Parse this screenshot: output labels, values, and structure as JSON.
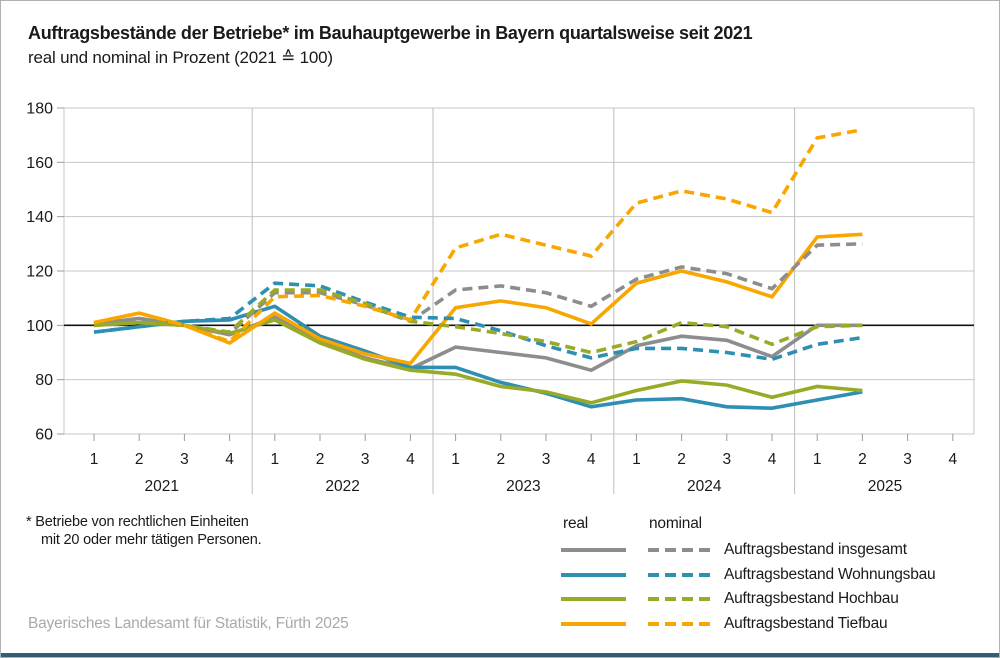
{
  "header": {
    "title": "Auftragsbestände der Betriebe* im Bauhauptgewerbe in Bayern quartalsweise seit 2021",
    "subtitle": "real und nominal in Prozent (2021 ≙ 100)"
  },
  "footnote": {
    "marker": "*",
    "line1": "Betriebe von rechtlichen Einheiten",
    "line2": "mit 20 oder mehr tätigen Personen."
  },
  "source": "Bayerisches Landesamt für Statistik, Fürth 2025",
  "colors": {
    "gray": "#8d8d8d",
    "blue": "#2e8fb3",
    "green": "#99ab26",
    "orange": "#f8a600",
    "baseline": "#111111",
    "grid": "#c7c7c7",
    "separator": "#bdbdbd"
  },
  "legend": {
    "col_real": "real",
    "col_nominal": "nominal",
    "rows": [
      {
        "label": "Auftragsbestand insgesamt",
        "color_key": "gray"
      },
      {
        "label": "Auftragsbestand Wohnungsbau",
        "color_key": "blue"
      },
      {
        "label": "Auftragsbestand Hochbau",
        "color_key": "green"
      },
      {
        "label": "Auftragsbestand Tiefbau",
        "color_key": "orange"
      }
    ]
  },
  "chart_data": {
    "type": "line",
    "title": "Auftragsbestände der Betriebe im Bauhauptgewerbe in Bayern quartalsweise seit 2021",
    "subtitle": "real und nominal in Prozent (2021 ≙ 100)",
    "ylim": [
      60,
      180
    ],
    "yticks": [
      60,
      80,
      100,
      120,
      140,
      160,
      180
    ],
    "baseline": 100,
    "grid": true,
    "legend_position": "bottom-right",
    "x_axis": {
      "years": [
        "2021",
        "2022",
        "2023",
        "2024",
        "2025"
      ],
      "quarter_labels": [
        "1",
        "2",
        "3",
        "4"
      ]
    },
    "categories": [
      "2021 Q1",
      "2021 Q2",
      "2021 Q3",
      "2021 Q4",
      "2022 Q1",
      "2022 Q2",
      "2022 Q3",
      "2022 Q4",
      "2023 Q1",
      "2023 Q2",
      "2023 Q3",
      "2023 Q4",
      "2024 Q1",
      "2024 Q2",
      "2024 Q3",
      "2024 Q4",
      "2025 Q1",
      "2025 Q2"
    ],
    "series": [
      {
        "name": "Auftragsbestand insgesamt real",
        "color_key": "gray",
        "dash": false,
        "values": [
          100.5,
          102.5,
          100,
          96.5,
          103,
          94,
          88,
          84,
          92,
          90,
          88,
          83.5,
          92.5,
          96,
          94.5,
          88.5,
          100,
          100
        ]
      },
      {
        "name": "Auftragsbestand Wohnungsbau real",
        "color_key": "blue",
        "dash": false,
        "values": [
          97.5,
          99.5,
          101.5,
          102,
          107,
          96,
          90.5,
          84.5,
          84.5,
          79,
          75,
          70,
          72.5,
          73,
          70,
          69.5,
          72.5,
          75.5
        ]
      },
      {
        "name": "Auftragsbestand Hochbau real",
        "color_key": "green",
        "dash": false,
        "values": [
          100,
          101,
          100,
          97,
          102,
          93.5,
          87.5,
          83.5,
          82,
          77.5,
          75.5,
          71.5,
          76,
          79.5,
          78,
          73.5,
          77.5,
          76
        ]
      },
      {
        "name": "Auftragsbestand Tiefbau real",
        "color_key": "orange",
        "dash": false,
        "values": [
          101,
          104.5,
          100,
          93.5,
          104.5,
          95,
          89.5,
          86,
          106.5,
          109,
          106.5,
          100.5,
          115.5,
          120,
          116,
          110.5,
          132.5,
          133.5
        ]
      },
      {
        "name": "Auftragsbestand insgesamt nominal",
        "color_key": "gray",
        "dash": true,
        "values": [
          100.5,
          102.5,
          100,
          97,
          112,
          112,
          107.5,
          101.5,
          113,
          114.5,
          112,
          107,
          117,
          121.5,
          119,
          113.5,
          129.5,
          130
        ]
      },
      {
        "name": "Auftragsbestand Wohnungsbau nominal",
        "color_key": "blue",
        "dash": true,
        "values": [
          97.5,
          99.5,
          101.5,
          102.5,
          115.5,
          114.5,
          108.5,
          103,
          102.5,
          98,
          92.5,
          88,
          91.5,
          91.5,
          90,
          87.5,
          93,
          95.5
        ]
      },
      {
        "name": "Auftragsbestand Hochbau nominal",
        "color_key": "green",
        "dash": true,
        "values": [
          100,
          101,
          100,
          97.5,
          113,
          113,
          108,
          101.5,
          99.5,
          97,
          94,
          90,
          94,
          101,
          99.5,
          93,
          99.5,
          100
        ]
      },
      {
        "name": "Auftragsbestand Tiefbau nominal",
        "color_key": "orange",
        "dash": true,
        "values": [
          101,
          104.5,
          100,
          94,
          110.5,
          111,
          107,
          102,
          128.5,
          133.5,
          129.5,
          125.5,
          145,
          149.5,
          146.5,
          141.5,
          169,
          172
        ]
      }
    ]
  }
}
